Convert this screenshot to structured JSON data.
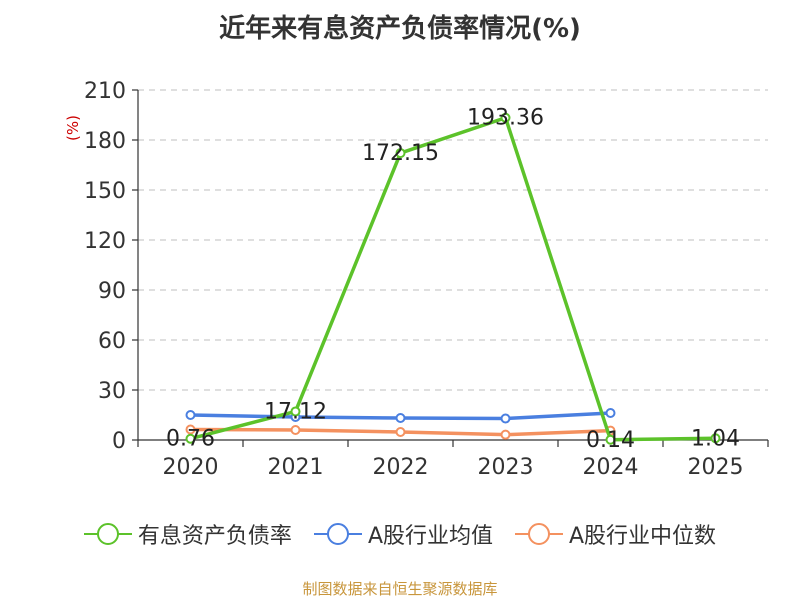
{
  "chart_data": {
    "type": "line",
    "title": "近年来有息资产负债率情况(%)",
    "ylabel": "(%)",
    "categories": [
      "2020",
      "2021",
      "2022",
      "2023",
      "2024",
      "2025"
    ],
    "ylim": [
      0,
      210
    ],
    "yticks": [
      0,
      30,
      60,
      90,
      120,
      150,
      180,
      210
    ],
    "grid": true,
    "legend_position": "bottom",
    "series": [
      {
        "name": "有息资产负债率",
        "color": "#5cc22a",
        "values": [
          0.76,
          17.12,
          172.15,
          193.36,
          0.14,
          1.04
        ],
        "labels": [
          "0.76",
          "17.12",
          "172.15",
          "193.36",
          "0.14",
          "1.04"
        ]
      },
      {
        "name": "A股行业均值",
        "color": "#4a7fe0",
        "values": [
          15.0,
          13.8,
          13.2,
          12.9,
          16.2,
          null
        ]
      },
      {
        "name": "A股行业中位数",
        "color": "#f4915f",
        "values": [
          6.3,
          6.0,
          4.8,
          3.2,
          5.6,
          null
        ]
      }
    ]
  },
  "source": "制图数据来自恒生聚源数据库"
}
